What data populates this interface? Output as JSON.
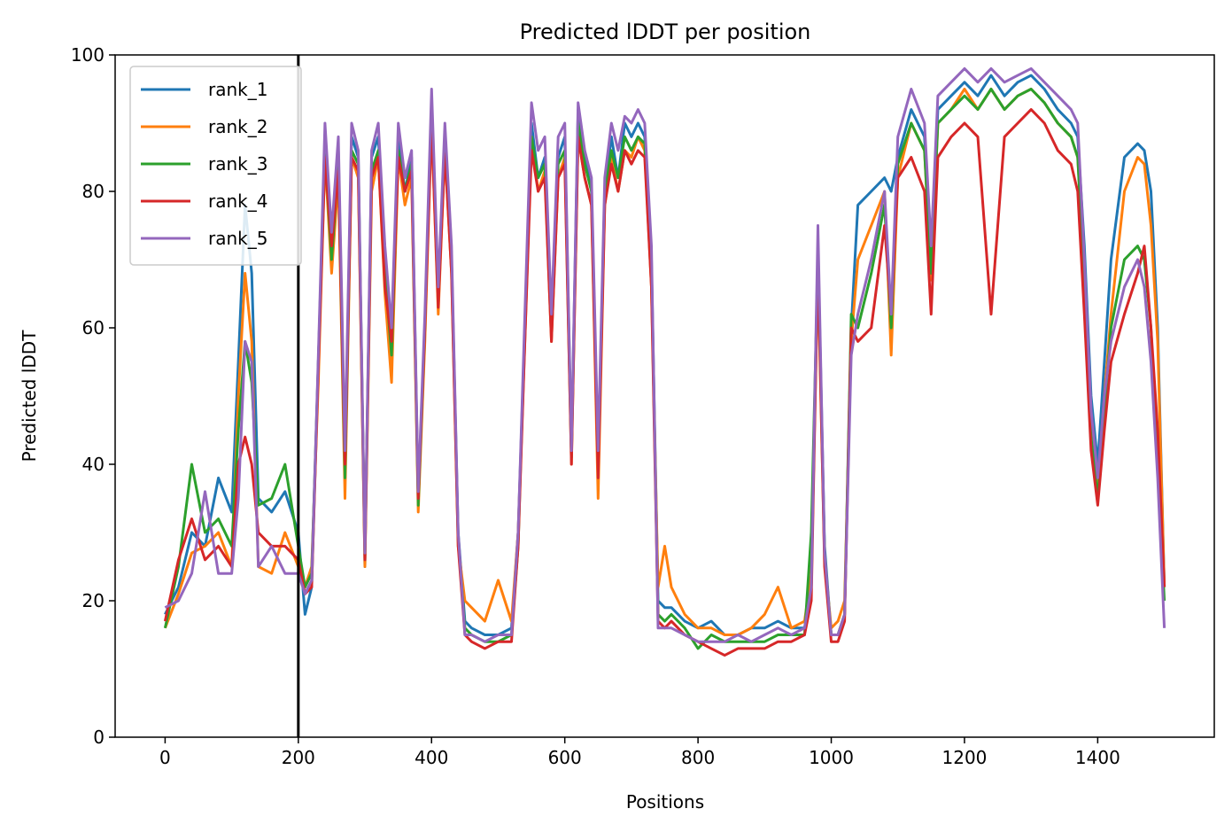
{
  "chart_data": {
    "type": "line",
    "title": "Predicted lDDT per position",
    "xlabel": "Positions",
    "ylabel": "Predicted lDDT",
    "xlim": [
      -75,
      1575
    ],
    "ylim": [
      0,
      100
    ],
    "xticks": [
      0,
      200,
      400,
      600,
      800,
      1000,
      1200,
      1400
    ],
    "yticks": [
      0,
      20,
      40,
      60,
      80,
      100
    ],
    "grid": false,
    "legend_position": "upper-left",
    "vline_x": 200,
    "vline_color": "#000000",
    "x": [
      0,
      20,
      40,
      60,
      80,
      100,
      110,
      120,
      130,
      140,
      160,
      180,
      200,
      210,
      220,
      230,
      240,
      250,
      260,
      270,
      280,
      290,
      300,
      310,
      320,
      330,
      340,
      350,
      360,
      370,
      380,
      390,
      400,
      410,
      420,
      430,
      440,
      450,
      460,
      480,
      500,
      520,
      530,
      540,
      550,
      560,
      570,
      580,
      590,
      600,
      610,
      620,
      630,
      640,
      650,
      660,
      670,
      680,
      690,
      700,
      710,
      720,
      730,
      740,
      750,
      760,
      780,
      800,
      820,
      840,
      860,
      880,
      900,
      920,
      940,
      960,
      970,
      980,
      990,
      1000,
      1010,
      1020,
      1030,
      1040,
      1060,
      1080,
      1090,
      1100,
      1120,
      1140,
      1150,
      1160,
      1180,
      1200,
      1220,
      1240,
      1260,
      1280,
      1300,
      1320,
      1340,
      1360,
      1370,
      1380,
      1390,
      1400,
      1410,
      1420,
      1440,
      1460,
      1470,
      1480,
      1490,
      1500
    ],
    "series": [
      {
        "name": "rank_1",
        "color": "#1f77b4",
        "values": [
          18,
          22,
          30,
          28,
          38,
          33,
          55,
          78,
          68,
          35,
          33,
          36,
          30,
          18,
          22,
          55,
          88,
          72,
          86,
          40,
          88,
          85,
          25,
          85,
          88,
          70,
          55,
          88,
          80,
          85,
          35,
          60,
          93,
          65,
          88,
          70,
          30,
          17,
          16,
          15,
          15,
          16,
          30,
          60,
          90,
          82,
          85,
          60,
          85,
          88,
          42,
          92,
          85,
          80,
          38,
          80,
          88,
          82,
          90,
          88,
          90,
          88,
          70,
          20,
          19,
          19,
          17,
          16,
          17,
          15,
          15,
          16,
          16,
          17,
          16,
          16,
          22,
          72,
          28,
          15,
          15,
          18,
          60,
          78,
          80,
          82,
          80,
          85,
          92,
          88,
          70,
          92,
          94,
          96,
          94,
          97,
          94,
          96,
          97,
          95,
          92,
          90,
          88,
          72,
          50,
          40,
          55,
          70,
          85,
          87,
          86,
          80,
          60,
          22
        ]
      },
      {
        "name": "rank_2",
        "color": "#ff7f0e",
        "values": [
          16,
          21,
          27,
          28,
          30,
          25,
          50,
          68,
          58,
          25,
          24,
          30,
          25,
          22,
          25,
          52,
          85,
          68,
          82,
          35,
          85,
          82,
          25,
          80,
          85,
          65,
          52,
          85,
          78,
          82,
          33,
          58,
          90,
          62,
          86,
          68,
          28,
          20,
          19,
          17,
          23,
          17,
          30,
          58,
          88,
          80,
          83,
          58,
          82,
          85,
          40,
          88,
          82,
          78,
          35,
          78,
          85,
          80,
          86,
          85,
          88,
          86,
          66,
          22,
          28,
          22,
          18,
          16,
          16,
          15,
          15,
          16,
          18,
          22,
          16,
          17,
          24,
          68,
          26,
          16,
          17,
          20,
          58,
          70,
          75,
          80,
          56,
          82,
          90,
          86,
          67,
          90,
          92,
          95,
          92,
          95,
          92,
          94,
          95,
          93,
          90,
          88,
          85,
          68,
          46,
          37,
          50,
          62,
          80,
          85,
          84,
          75,
          58,
          22
        ]
      },
      {
        "name": "rank_3",
        "color": "#2ca02c",
        "values": [
          16,
          25,
          40,
          30,
          32,
          28,
          45,
          58,
          52,
          34,
          35,
          40,
          28,
          22,
          24,
          55,
          86,
          70,
          84,
          38,
          86,
          84,
          27,
          83,
          86,
          68,
          56,
          86,
          80,
          84,
          34,
          60,
          92,
          64,
          87,
          70,
          29,
          16,
          15,
          14,
          14,
          15,
          28,
          60,
          88,
          82,
          84,
          60,
          84,
          86,
          41,
          90,
          84,
          80,
          40,
          80,
          86,
          82,
          88,
          86,
          88,
          87,
          68,
          18,
          17,
          18,
          16,
          13,
          15,
          14,
          14,
          14,
          14,
          15,
          15,
          15,
          30,
          70,
          27,
          15,
          15,
          18,
          62,
          60,
          68,
          78,
          60,
          84,
          90,
          86,
          68,
          90,
          92,
          94,
          92,
          95,
          92,
          94,
          95,
          93,
          90,
          88,
          85,
          66,
          44,
          35,
          48,
          60,
          70,
          72,
          70,
          60,
          40,
          20
        ]
      },
      {
        "name": "rank_4",
        "color": "#d62728",
        "values": [
          17,
          26,
          32,
          26,
          28,
          25,
          40,
          44,
          40,
          30,
          28,
          28,
          26,
          21,
          22,
          54,
          85,
          72,
          83,
          40,
          85,
          83,
          26,
          82,
          85,
          66,
          58,
          85,
          80,
          83,
          35,
          60,
          90,
          63,
          86,
          68,
          28,
          15,
          14,
          13,
          14,
          14,
          28,
          58,
          86,
          80,
          82,
          58,
          82,
          84,
          40,
          88,
          82,
          78,
          38,
          78,
          84,
          80,
          86,
          84,
          86,
          85,
          66,
          17,
          16,
          17,
          15,
          14,
          13,
          12,
          13,
          13,
          13,
          14,
          14,
          15,
          20,
          70,
          25,
          14,
          14,
          17,
          60,
          58,
          60,
          75,
          62,
          82,
          85,
          80,
          62,
          85,
          88,
          90,
          88,
          62,
          88,
          90,
          92,
          90,
          86,
          84,
          80,
          62,
          42,
          34,
          45,
          55,
          62,
          68,
          72,
          60,
          45,
          22
        ]
      },
      {
        "name": "rank_5",
        "color": "#9467bd",
        "values": [
          19,
          20,
          24,
          36,
          24,
          24,
          35,
          58,
          55,
          25,
          28,
          24,
          24,
          21,
          23,
          56,
          90,
          74,
          88,
          42,
          90,
          86,
          27,
          86,
          90,
          72,
          60,
          90,
          82,
          86,
          36,
          62,
          95,
          66,
          90,
          72,
          30,
          15,
          15,
          14,
          15,
          15,
          30,
          62,
          93,
          86,
          88,
          62,
          88,
          90,
          42,
          93,
          86,
          82,
          42,
          82,
          90,
          86,
          91,
          90,
          92,
          90,
          72,
          16,
          16,
          16,
          15,
          14,
          14,
          14,
          15,
          14,
          15,
          16,
          15,
          16,
          22,
          75,
          27,
          15,
          15,
          18,
          56,
          62,
          70,
          80,
          62,
          88,
          95,
          90,
          72,
          94,
          96,
          98,
          96,
          98,
          96,
          97,
          98,
          96,
          94,
          92,
          90,
          70,
          48,
          38,
          50,
          58,
          66,
          70,
          66,
          55,
          38,
          16
        ]
      }
    ]
  }
}
